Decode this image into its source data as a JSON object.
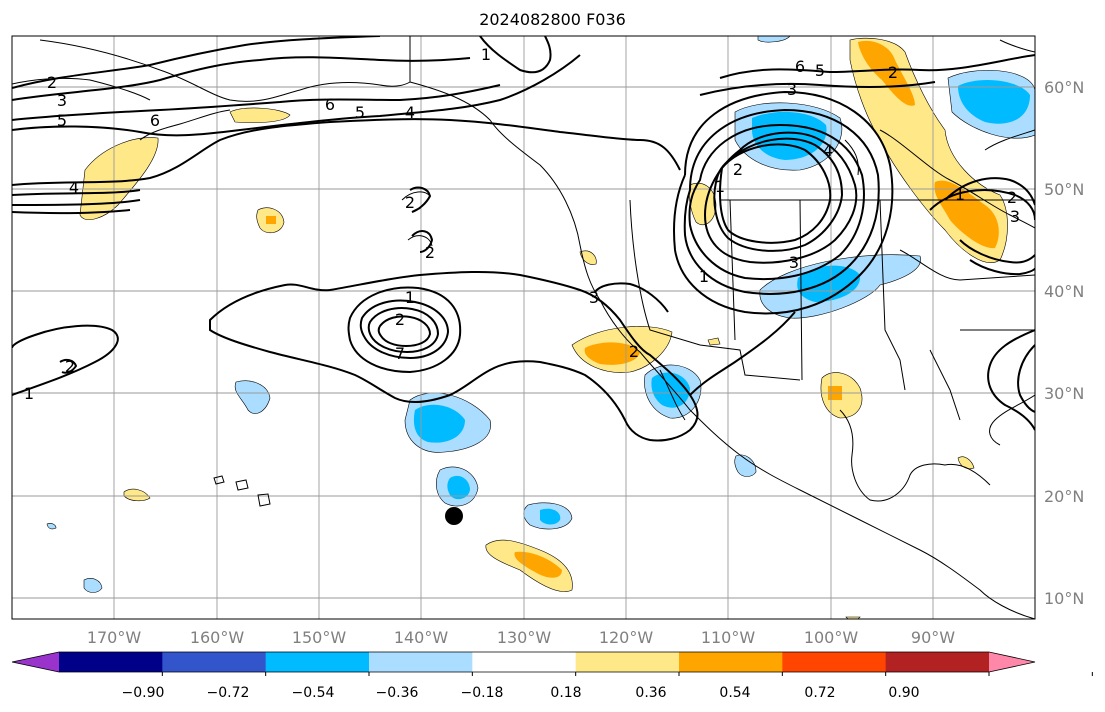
{
  "title": "2024082800 F036",
  "longitude_labels": [
    "170°W",
    "160°W",
    "150°W",
    "140°W",
    "130°W",
    "120°W",
    "110°W",
    "100°W",
    "90°W"
  ],
  "latitude_labels": [
    "60°N",
    "50°N",
    "40°N",
    "30°N",
    "20°N",
    "10°N"
  ],
  "colorbar": {
    "ticks": [
      "−0.90",
      "−0.72",
      "−0.54",
      "−0.36",
      "−0.18",
      "0.18",
      "0.36",
      "0.54",
      "0.72",
      "0.90"
    ],
    "colors": [
      "#9933cc",
      "#000088",
      "#3355cc",
      "#00bbff",
      "#aaddff",
      "#ffffff",
      "#ffe888",
      "#ffa500",
      "#ff4500",
      "#b22222",
      "#ff88aa"
    ]
  },
  "contour_labels": [
    "2",
    "3",
    "5",
    "6",
    "4",
    "6",
    "5",
    "4",
    "6",
    "5",
    "3",
    "2",
    "1",
    "2",
    "4",
    "3",
    "1",
    "1",
    "2",
    "1",
    "2",
    "7",
    "2",
    "3",
    "2",
    "1",
    "2",
    "2",
    "1",
    "3"
  ],
  "marker": "storm-center-dot"
}
